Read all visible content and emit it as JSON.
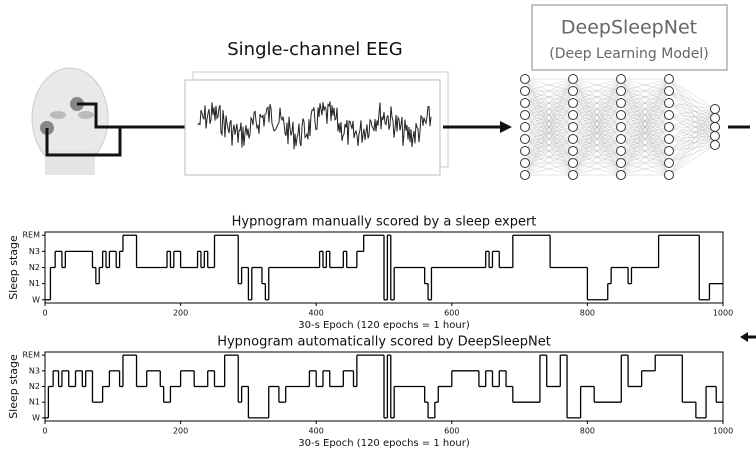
{
  "diagram": {
    "eeg_title": "Single-channel EEG",
    "model_title": "DeepSleepNet",
    "model_subtitle": "(Deep Learning Model)"
  },
  "chart_data": [
    {
      "type": "step",
      "title": "Hypnogram manually scored by a sleep expert",
      "x_label": "30-s Epoch (120 epochs = 1 hour)",
      "y_label": "Sleep stage",
      "x": [
        0,
        8,
        15,
        25,
        30,
        70,
        75,
        80,
        85,
        90,
        95,
        105,
        110,
        115,
        135,
        180,
        185,
        190,
        200,
        225,
        230,
        235,
        240,
        250,
        285,
        290,
        300,
        305,
        320,
        325,
        330,
        405,
        410,
        415,
        420,
        440,
        445,
        460,
        470,
        500,
        505,
        510,
        515,
        560,
        565,
        570,
        650,
        655,
        660,
        670,
        690,
        745,
        800,
        830,
        835,
        860,
        865,
        905,
        965,
        980,
        1000
      ],
      "values": [
        0,
        2,
        3,
        2,
        3,
        2,
        1,
        2,
        3,
        2,
        3,
        2,
        3,
        4,
        2,
        3,
        2,
        3,
        2,
        3,
        2,
        3,
        2,
        4,
        1,
        2,
        0,
        2,
        1,
        0,
        2,
        3,
        2,
        3,
        2,
        3,
        2,
        3,
        4,
        0,
        4,
        0,
        2,
        1,
        0,
        2,
        3,
        2,
        3,
        2,
        4,
        2,
        0,
        1,
        2,
        1,
        2,
        4,
        0,
        1,
        1
      ],
      "color": "#000000",
      "xlim": [
        0,
        1000
      ],
      "ylim": [
        -0.2,
        4.2
      ],
      "xticks": [
        0,
        200,
        400,
        600,
        800,
        1000
      ],
      "yticks": [
        {
          "value": 0,
          "label": "W"
        },
        {
          "value": 1,
          "label": "N1"
        },
        {
          "value": 2,
          "label": "N2"
        },
        {
          "value": 3,
          "label": "N3"
        },
        {
          "value": 4,
          "label": "REM"
        }
      ]
    },
    {
      "type": "step",
      "title": "Hypnogram automatically scored by DeepSleepNet",
      "x_label": "30-s Epoch (120 epochs = 1 hour)",
      "y_label": "Sleep stage",
      "x": [
        0,
        5,
        12,
        20,
        25,
        35,
        45,
        55,
        60,
        70,
        85,
        95,
        110,
        115,
        135,
        150,
        170,
        175,
        185,
        200,
        220,
        240,
        250,
        265,
        285,
        290,
        300,
        330,
        345,
        355,
        390,
        400,
        410,
        420,
        440,
        455,
        460,
        500,
        505,
        510,
        515,
        560,
        565,
        575,
        580,
        600,
        640,
        650,
        660,
        670,
        680,
        690,
        730,
        740,
        760,
        770,
        790,
        810,
        850,
        860,
        880,
        900,
        940,
        960,
        975,
        990,
        1000
      ],
      "values": [
        0,
        2,
        3,
        2,
        3,
        2,
        3,
        2,
        3,
        1,
        2,
        3,
        2,
        4,
        2,
        3,
        2,
        1,
        2,
        3,
        2,
        3,
        2,
        4,
        1,
        2,
        0,
        2,
        1,
        2,
        3,
        2,
        3,
        2,
        3,
        2,
        4,
        0,
        4,
        0,
        2,
        1,
        0,
        1,
        2,
        3,
        2,
        3,
        2,
        3,
        2,
        1,
        4,
        2,
        4,
        0,
        2,
        1,
        4,
        2,
        3,
        4,
        1,
        0,
        2,
        1,
        1
      ],
      "color": "#000000",
      "xlim": [
        0,
        1000
      ],
      "ylim": [
        -0.2,
        4.2
      ],
      "xticks": [
        0,
        200,
        400,
        600,
        800,
        1000
      ],
      "yticks": [
        {
          "value": 0,
          "label": "W"
        },
        {
          "value": 1,
          "label": "N1"
        },
        {
          "value": 2,
          "label": "N2"
        },
        {
          "value": 3,
          "label": "N3"
        },
        {
          "value": 4,
          "label": "REM"
        }
      ]
    }
  ]
}
